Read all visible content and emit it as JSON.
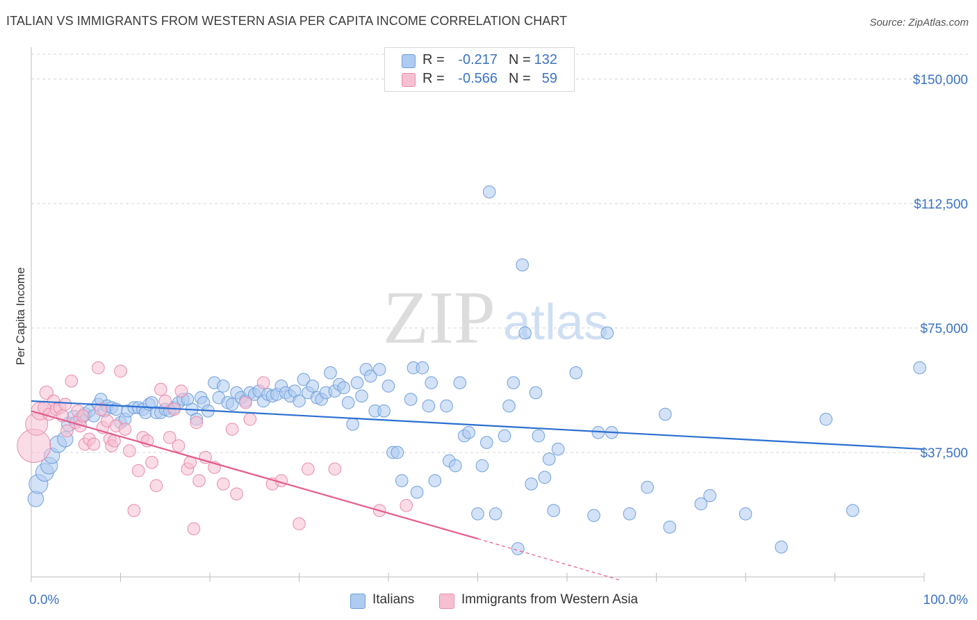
{
  "title": "ITALIAN VS IMMIGRANTS FROM WESTERN ASIA PER CAPITA INCOME CORRELATION CHART",
  "source": "Source: ZipAtlas.com",
  "watermark": {
    "zip": "ZIP",
    "atlas": "atlas"
  },
  "stats": [
    {
      "r_label": "R =",
      "r_value": "-0.217",
      "n_label": "N =",
      "n_value": "132"
    },
    {
      "r_label": "R =",
      "r_value": "-0.566",
      "n_label": "N =",
      "n_value": "59"
    }
  ],
  "legend": {
    "blue_label": "Italians",
    "pink_label": "Immigrants from Western Asia"
  },
  "colors": {
    "blue_fill": "#aecbf0",
    "blue_stroke": "#6f9fdc",
    "blue_line": "#2a6fd0",
    "pink_fill": "#f6c0d2",
    "pink_stroke": "#e88aab",
    "pink_line": "#e55a8a",
    "tick_label": "#3b73c4",
    "grid": "#d4d4d4"
  },
  "chart_data": {
    "type": "scatter",
    "title": "ITALIAN VS IMMIGRANTS FROM WESTERN ASIA PER CAPITA INCOME CORRELATION CHART",
    "xlabel": "",
    "ylabel": "Per Capita Income",
    "xlim": [
      0,
      100
    ],
    "ylim": [
      0,
      157500
    ],
    "x_tick_labels": [
      "0.0%",
      "100.0%"
    ],
    "y_ticks": [
      37500,
      75000,
      112500,
      150000
    ],
    "y_tick_labels": [
      "$37,500",
      "$75,000",
      "$112,500",
      "$150,000"
    ],
    "grid": true,
    "legend_position": "top-center",
    "series": [
      {
        "name": "Italians",
        "r": -0.217,
        "n": 132,
        "trend": {
          "x": [
            0,
            100
          ],
          "y": [
            53000,
            38500
          ]
        },
        "points": [
          [
            0.5,
            23500,
            1.4
          ],
          [
            0.8,
            28000,
            1.7
          ],
          [
            1.5,
            31500,
            1.6
          ],
          [
            2,
            33500,
            1.5
          ],
          [
            2.3,
            36500,
            1.4
          ],
          [
            3,
            40000,
            1.5
          ],
          [
            3.8,
            41500,
            1.4
          ],
          [
            4.2,
            46000,
            1.3
          ],
          [
            4.8,
            48000,
            1.3
          ],
          [
            5.5,
            47500,
            1.2
          ],
          [
            6,
            49000,
            1.2
          ],
          [
            6.5,
            50000,
            1.1
          ],
          [
            7,
            48500,
            1.1
          ],
          [
            7.5,
            52000,
            1.1
          ],
          [
            7.8,
            53500,
            1.1
          ],
          [
            8.2,
            50000,
            1.1
          ],
          [
            8.5,
            51500,
            1.1
          ],
          [
            9,
            51000,
            1.1
          ],
          [
            9.5,
            50500,
            1.1
          ],
          [
            10,
            46500,
            1.1
          ],
          [
            10.5,
            47500,
            1.1
          ],
          [
            10.8,
            50000,
            1.1
          ],
          [
            11.5,
            51000,
            1.1
          ],
          [
            12,
            51000,
            1.1
          ],
          [
            12.5,
            50500,
            1.1
          ],
          [
            12.8,
            49500,
            1.1
          ],
          [
            13.2,
            52000,
            1.1
          ],
          [
            13.5,
            52500,
            1.1
          ],
          [
            14,
            49500,
            1.1
          ],
          [
            14.5,
            49500,
            1.1
          ],
          [
            15,
            50500,
            1.1
          ],
          [
            15.5,
            50000,
            1.1
          ],
          [
            16,
            51000,
            1.1
          ],
          [
            16.5,
            52500,
            1.1
          ],
          [
            17,
            53500,
            1.1
          ],
          [
            17.5,
            53500,
            1.1
          ],
          [
            18,
            50500,
            1.1
          ],
          [
            18.5,
            47500,
            1.1
          ],
          [
            19,
            54000,
            1.1
          ],
          [
            19.3,
            52500,
            1.1
          ],
          [
            19.8,
            50000,
            1.1
          ],
          [
            20.5,
            58500,
            1.1
          ],
          [
            21,
            54000,
            1.1
          ],
          [
            21.5,
            57500,
            1.1
          ],
          [
            22,
            52500,
            1.1
          ],
          [
            22.5,
            52000,
            1.1
          ],
          [
            23,
            55500,
            1.1
          ],
          [
            23.5,
            54000,
            1.1
          ],
          [
            24,
            53000,
            1.1
          ],
          [
            24.5,
            55500,
            1.1
          ],
          [
            25,
            55000,
            1.1
          ],
          [
            25.5,
            56000,
            1.1
          ],
          [
            26,
            53000,
            1.1
          ],
          [
            26.5,
            55000,
            1.1
          ],
          [
            27,
            54500,
            1.1
          ],
          [
            27.5,
            55000,
            1.1
          ],
          [
            28,
            57500,
            1.1
          ],
          [
            28.5,
            55500,
            1.1
          ],
          [
            29,
            54500,
            1.1
          ],
          [
            29.5,
            56000,
            1.1
          ],
          [
            30,
            53000,
            1.1
          ],
          [
            30.5,
            59500,
            1.1
          ],
          [
            31,
            55500,
            1.1
          ],
          [
            31.5,
            57500,
            1.1
          ],
          [
            32,
            54000,
            1.1
          ],
          [
            32.5,
            53500,
            1.1
          ],
          [
            33,
            55500,
            1.1
          ],
          [
            33.5,
            61500,
            1.1
          ],
          [
            34,
            56000,
            1.1
          ],
          [
            34.5,
            58000,
            1.1
          ],
          [
            35,
            57000,
            1.1
          ],
          [
            35.5,
            52500,
            1.1
          ],
          [
            36,
            46000,
            1.1
          ],
          [
            36.5,
            58500,
            1.1
          ],
          [
            37,
            54500,
            1.1
          ],
          [
            37.5,
            62500,
            1.1
          ],
          [
            38,
            60500,
            1.1
          ],
          [
            38.5,
            50000,
            1.1
          ],
          [
            39,
            62500,
            1.1
          ],
          [
            39.5,
            50000,
            1.1
          ],
          [
            40,
            57500,
            1.1
          ],
          [
            40.5,
            37500,
            1.1
          ],
          [
            41,
            37500,
            1.1
          ],
          [
            41.5,
            29000,
            1.1
          ],
          [
            42.5,
            53500,
            1.1
          ],
          [
            42.8,
            63000,
            1.1
          ],
          [
            43.2,
            25500,
            1.1
          ],
          [
            43.8,
            63000,
            1.1
          ],
          [
            44.5,
            51500,
            1.1
          ],
          [
            44.8,
            58500,
            1.1
          ],
          [
            45.2,
            29000,
            1.1
          ],
          [
            46.5,
            51500,
            1.1
          ],
          [
            46.8,
            35000,
            1.1
          ],
          [
            47.5,
            33500,
            1.1
          ],
          [
            48,
            58500,
            1.1
          ],
          [
            48.5,
            42500,
            1.1
          ],
          [
            49,
            43500,
            1.1
          ],
          [
            50,
            19000,
            1.1
          ],
          [
            50.5,
            33500,
            1.1
          ],
          [
            51,
            40500,
            1.1
          ],
          [
            51.3,
            116000,
            1.1
          ],
          [
            52,
            19000,
            1.1
          ],
          [
            53,
            42500,
            1.1
          ],
          [
            53.5,
            51500,
            1.1
          ],
          [
            54,
            58500,
            1.1
          ],
          [
            54.5,
            8500,
            1.1
          ],
          [
            55,
            94000,
            1.1
          ],
          [
            55.3,
            73500,
            1.1
          ],
          [
            56,
            28000,
            1.1
          ],
          [
            56.5,
            55500,
            1.1
          ],
          [
            56.8,
            42500,
            1.1
          ],
          [
            57.5,
            30000,
            1.1
          ],
          [
            58,
            35500,
            1.1
          ],
          [
            58.5,
            20000,
            1.1
          ],
          [
            59,
            38500,
            1.1
          ],
          [
            61,
            61500,
            1.1
          ],
          [
            63,
            18500,
            1.1
          ],
          [
            63.5,
            43500,
            1.1
          ],
          [
            64.5,
            73500,
            1.1
          ],
          [
            65,
            43500,
            1.1
          ],
          [
            67,
            19000,
            1.1
          ],
          [
            69,
            27000,
            1.1
          ],
          [
            71,
            49000,
            1.1
          ],
          [
            71.5,
            15000,
            1.1
          ],
          [
            75,
            22000,
            1.1
          ],
          [
            76,
            24500,
            1.1
          ],
          [
            80,
            19000,
            1.1
          ],
          [
            84,
            9000,
            1.1
          ],
          [
            89,
            47500,
            1.1
          ],
          [
            92,
            20000,
            1.1
          ],
          [
            99.5,
            63000,
            1.1
          ]
        ]
      },
      {
        "name": "Immigrants from Western Asia",
        "r": -0.566,
        "n": 59,
        "trend": {
          "x": [
            0,
            50
          ],
          "y": [
            50000,
            11500
          ]
        },
        "trend_dashed": {
          "x": [
            50,
            66
          ],
          "y": [
            11500,
            -1000
          ]
        },
        "points": [
          [
            0.3,
            39500,
            3.0
          ],
          [
            0.6,
            46000,
            2.0
          ],
          [
            1,
            50000,
            1.6
          ],
          [
            1.5,
            51000,
            1.2
          ],
          [
            1.7,
            55500,
            1.2
          ],
          [
            2,
            49000,
            1.1
          ],
          [
            2.5,
            53000,
            1.1
          ],
          [
            2.8,
            50500,
            1.1
          ],
          [
            3.2,
            51000,
            1.1
          ],
          [
            3.5,
            48500,
            1.1
          ],
          [
            3.8,
            52000,
            1.1
          ],
          [
            4,
            44000,
            1.1
          ],
          [
            4.5,
            59000,
            1.1
          ],
          [
            5,
            46500,
            1.1
          ],
          [
            5.2,
            50000,
            1.1
          ],
          [
            5.5,
            45500,
            1.1
          ],
          [
            5.8,
            48500,
            1.1
          ],
          [
            6,
            40000,
            1.1
          ],
          [
            6.5,
            41500,
            1.1
          ],
          [
            7,
            40000,
            1.1
          ],
          [
            7.5,
            63000,
            1.1
          ],
          [
            7.8,
            50500,
            1.1
          ],
          [
            8,
            45000,
            1.1
          ],
          [
            8.5,
            47000,
            1.1
          ],
          [
            8.8,
            41500,
            1.1
          ],
          [
            9,
            39500,
            1.1
          ],
          [
            9.3,
            41000,
            1.1
          ],
          [
            9.5,
            45500,
            1.1
          ],
          [
            10,
            62000,
            1.1
          ],
          [
            10.5,
            44500,
            1.1
          ],
          [
            11,
            38000,
            1.1
          ],
          [
            11.5,
            20000,
            1.1
          ],
          [
            12,
            32000,
            1.1
          ],
          [
            12.5,
            42000,
            1.1
          ],
          [
            13,
            41000,
            1.1
          ],
          [
            13.5,
            34500,
            1.1
          ],
          [
            14,
            27500,
            1.1
          ],
          [
            14.5,
            56500,
            1.1
          ],
          [
            15,
            53000,
            1.1
          ],
          [
            15.5,
            42000,
            1.1
          ],
          [
            16,
            50500,
            1.1
          ],
          [
            16.5,
            39500,
            1.1
          ],
          [
            16.8,
            56000,
            1.1
          ],
          [
            17.5,
            32500,
            1.1
          ],
          [
            17.8,
            34500,
            1.1
          ],
          [
            18.2,
            14500,
            1.1
          ],
          [
            18.5,
            46500,
            1.1
          ],
          [
            18.8,
            29000,
            1.1
          ],
          [
            19.5,
            36000,
            1.1
          ],
          [
            20.5,
            33000,
            1.1
          ],
          [
            21.5,
            28000,
            1.1
          ],
          [
            22.5,
            44500,
            1.1
          ],
          [
            23,
            25000,
            1.1
          ],
          [
            24,
            52500,
            1.1
          ],
          [
            24.5,
            47500,
            1.1
          ],
          [
            26,
            58500,
            1.1
          ],
          [
            27,
            28000,
            1.1
          ],
          [
            28,
            29000,
            1.1
          ],
          [
            30,
            16000,
            1.1
          ],
          [
            31,
            32500,
            1.1
          ],
          [
            34,
            32500,
            1.1
          ],
          [
            39,
            20000,
            1.1
          ],
          [
            42,
            21500,
            1.1
          ]
        ]
      }
    ]
  }
}
